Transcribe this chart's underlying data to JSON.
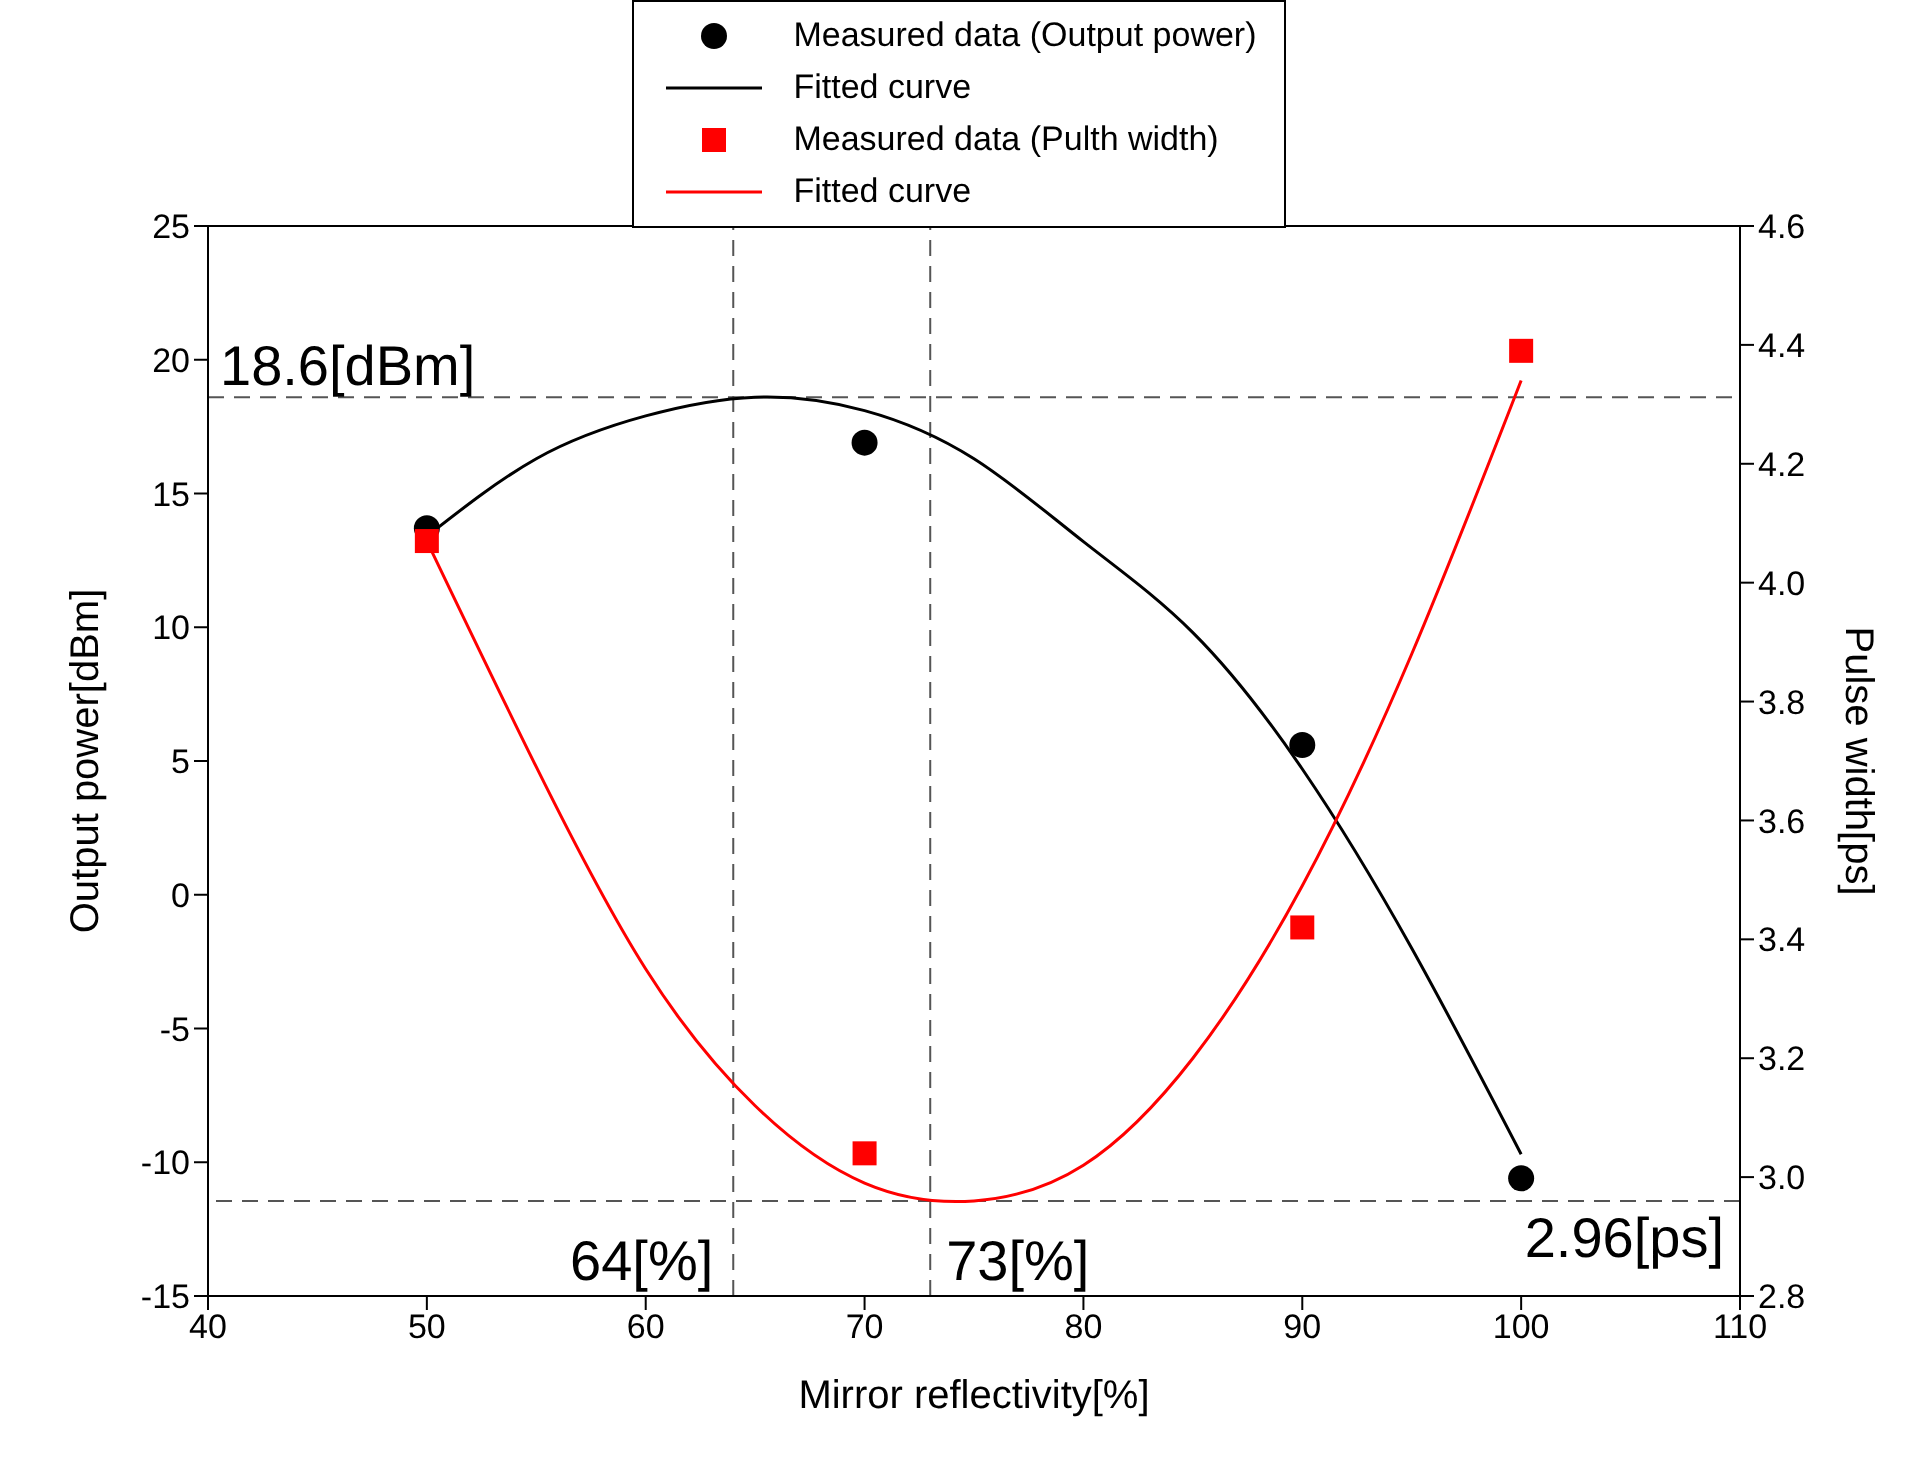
{
  "chart_data": {
    "type": "scatter",
    "xlabel": "Mirror reflectivity[%]",
    "ylabel": "Output power[dBm]",
    "y2label": "Pulse width[ps]",
    "xlim": [
      40,
      110
    ],
    "xticks": [
      40,
      50,
      60,
      70,
      80,
      90,
      100,
      110
    ],
    "ylim": [
      -15,
      25
    ],
    "yticks": [
      -15,
      -10,
      -5,
      0,
      5,
      10,
      15,
      20,
      25
    ],
    "y2lim": [
      2.8,
      4.6
    ],
    "y2ticks": [
      {
        "value": 2.8,
        "label": "2.8"
      },
      {
        "value": 3.0,
        "label": "3.0"
      },
      {
        "value": 3.2,
        "label": "3.2"
      },
      {
        "value": 3.4,
        "label": "3.4"
      },
      {
        "value": 3.6,
        "label": "3.6"
      },
      {
        "value": 3.8,
        "label": "3.8"
      },
      {
        "value": 4.0,
        "label": "4.0"
      },
      {
        "value": 4.2,
        "label": "4.2"
      },
      {
        "value": 4.4,
        "label": "4.4"
      },
      {
        "value": 4.6,
        "label": "4.6"
      }
    ],
    "legend": "top",
    "series": [
      {
        "name": "Measured data (Output power)",
        "marker": "circle",
        "color": "#000000",
        "x": [
          50,
          70,
          90,
          100
        ],
        "values": [
          13.7,
          16.9,
          5.6,
          -10.6
        ]
      },
      {
        "name": "Fitted curve",
        "type": "line",
        "marker": "none",
        "color": "#000000",
        "x": [
          50,
          55,
          60,
          65,
          70,
          75,
          80,
          85,
          90,
          95,
          100
        ],
        "values": [
          13.4,
          16.3,
          17.9,
          18.6,
          18.1,
          16.3,
          13.2,
          9.8,
          4.7,
          -2.0,
          -9.7
        ]
      },
      {
        "name": "Measured data (Pulth width)",
        "marker": "square",
        "color": "#ff0000",
        "axis": "y2",
        "x": [
          50,
          70,
          90,
          100
        ],
        "values": [
          4.07,
          3.04,
          3.42,
          4.39
        ]
      },
      {
        "name": "Fitted curve",
        "type": "line",
        "marker": "none",
        "color": "#ff0000",
        "axis": "y2",
        "x": [
          50,
          55,
          60,
          65,
          70,
          75,
          80,
          85,
          90,
          95,
          100
        ],
        "values": [
          4.07,
          3.69,
          3.35,
          3.12,
          2.99,
          2.96,
          3.02,
          3.2,
          3.49,
          3.88,
          4.34
        ]
      }
    ],
    "ref_lines": [
      {
        "axis": "y",
        "value": 18.6,
        "label": "18.6[dBm]",
        "color": "#555555",
        "line_style": "dashed"
      },
      {
        "axis": "x",
        "value": 64,
        "label": "64[%]",
        "color": "#555555",
        "line_style": "dashed"
      },
      {
        "axis": "x",
        "value": 73,
        "label": "73[%]",
        "color": "#555555",
        "line_style": "dashed"
      },
      {
        "axis": "y2",
        "value": 2.96,
        "label": "2.96[ps]",
        "color": "#555555",
        "line_style": "dashed"
      }
    ]
  }
}
